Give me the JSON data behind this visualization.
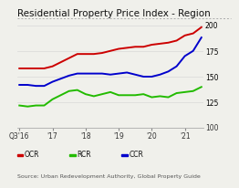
{
  "title": "Residential Property Price Index - Region",
  "source": "Source: Urban Redevelopment Authority, Global Property Guide",
  "legend": [
    {
      "label": "OCR",
      "color": "#cc0000"
    },
    {
      "label": "RCR",
      "color": "#22bb00"
    },
    {
      "label": "CCR",
      "color": "#0000cc"
    }
  ],
  "x_tick_labels": [
    "Q3'16",
    "'17",
    "'18",
    "'19",
    "'20",
    "'21"
  ],
  "x_tick_positions": [
    0,
    4,
    8,
    12,
    16,
    20
  ],
  "ylim": [
    100,
    205
  ],
  "yticks": [
    125,
    150,
    175,
    200
  ],
  "y_right_extra": 100,
  "ocr": [
    158,
    158,
    158,
    158,
    160,
    164,
    168,
    172,
    172,
    172,
    173,
    175,
    177,
    178,
    179,
    179,
    181,
    182,
    183,
    185,
    190,
    192,
    198
  ],
  "rcr": [
    122,
    121,
    122,
    122,
    128,
    132,
    136,
    137,
    133,
    131,
    133,
    135,
    132,
    132,
    132,
    133,
    130,
    131,
    130,
    134,
    135,
    136,
    140
  ],
  "ccr": [
    142,
    142,
    141,
    141,
    145,
    148,
    151,
    153,
    153,
    153,
    153,
    152,
    153,
    154,
    152,
    150,
    150,
    152,
    155,
    160,
    170,
    175,
    188
  ],
  "background_color": "#f0f0eb",
  "grid_color": "#d8d8d8",
  "title_fontsize": 7.5,
  "tick_fontsize": 5.5,
  "source_fontsize": 4.5,
  "legend_fontsize": 5.5,
  "linewidth": 1.4
}
